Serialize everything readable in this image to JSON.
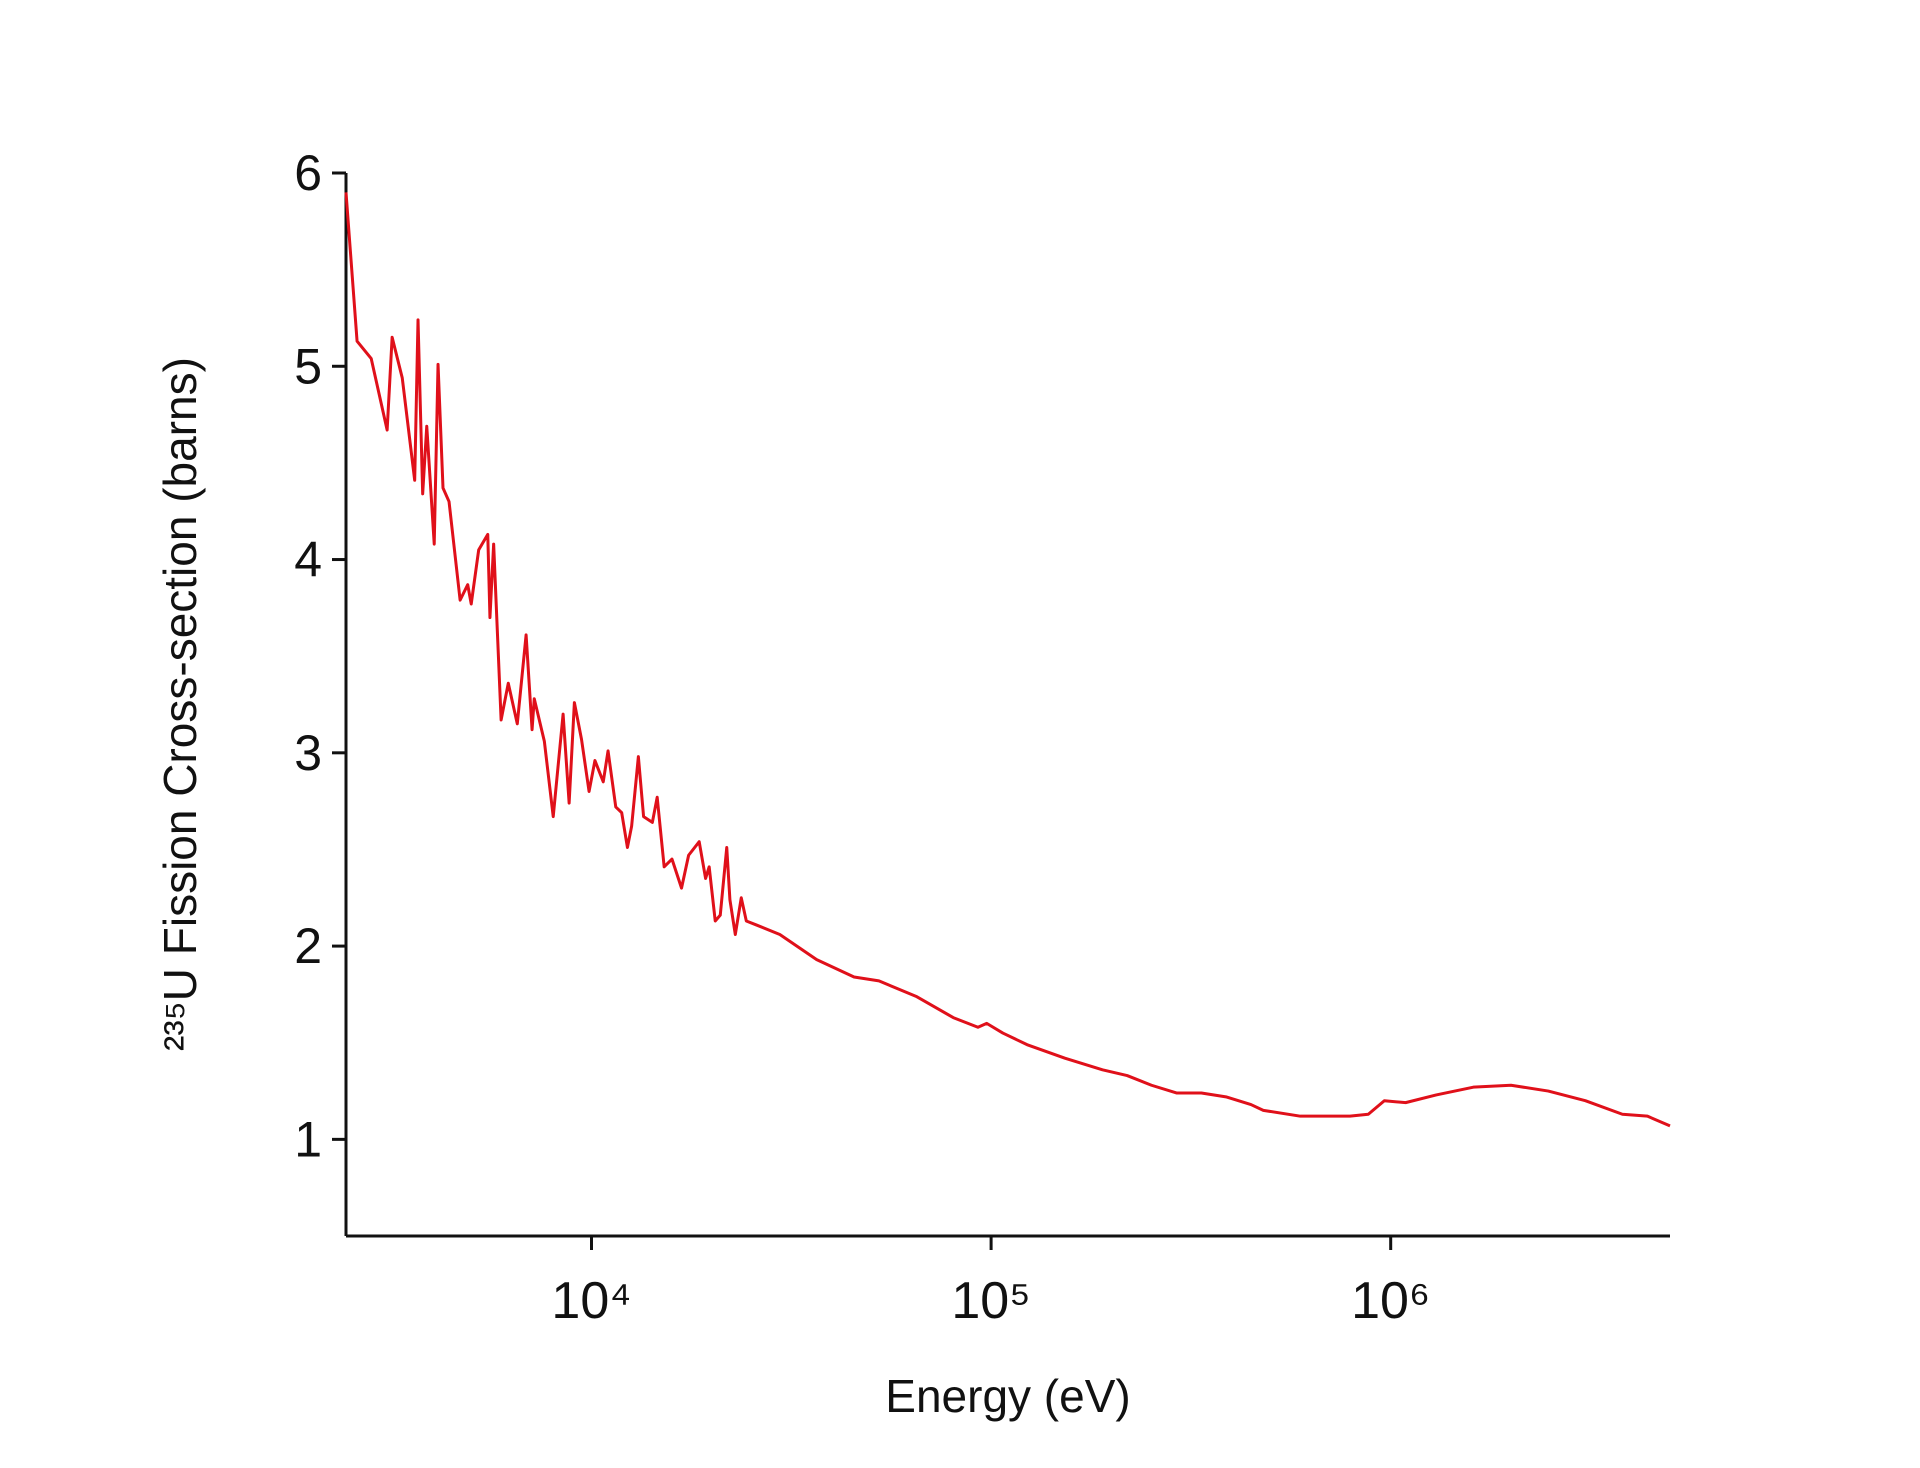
{
  "chart_data": {
    "type": "line",
    "x_label": "Energy (eV)",
    "y_label": "²³⁵U Fission Cross-section (barns)",
    "xscale": "log",
    "xlim": [
      2430,
      5000000
    ],
    "ylim": [
      0.5,
      6
    ],
    "xticks": [
      {
        "value": 10000,
        "label": "10⁴"
      },
      {
        "value": 100000,
        "label": "10⁵"
      },
      {
        "value": 1000000,
        "label": "10⁶"
      }
    ],
    "yticks": [
      1,
      2,
      3,
      4,
      5,
      6
    ],
    "grid": false,
    "series": [
      {
        "name": "²³⁵U fission",
        "color": "#e0101a",
        "x": [
          2430,
          2590,
          2810,
          3080,
          3170,
          3360,
          3610,
          3680,
          3780,
          3870,
          4040,
          4130,
          4250,
          4400,
          4690,
          4900,
          5000,
          5220,
          5500,
          5570,
          5690,
          5940,
          6190,
          6520,
          6860,
          7100,
          7190,
          7620,
          8020,
          8490,
          8790,
          9060,
          9440,
          9860,
          10200,
          10700,
          11000,
          11500,
          11900,
          12300,
          12600,
          13100,
          13500,
          14200,
          14600,
          15200,
          15900,
          16800,
          17500,
          18600,
          19300,
          19700,
          20400,
          21000,
          21800,
          22200,
          22900,
          23700,
          24400,
          25800,
          29600,
          36600,
          45400,
          52400,
          64900,
          80400,
          92700,
          97500,
          107000,
          123000,
          153000,
          190000,
          219000,
          252000,
          291000,
          336000,
          387000,
          447000,
          480000,
          594000,
          685000,
          791000,
          879000,
          964000,
          1090000,
          1300000,
          1610000,
          2000000,
          2480000,
          3070000,
          3800000,
          4390000,
          5000000
        ],
        "values": [
          5.9,
          5.13,
          5.04,
          4.67,
          5.15,
          4.94,
          4.41,
          5.24,
          4.34,
          4.69,
          4.08,
          5.01,
          4.37,
          4.3,
          3.79,
          3.87,
          3.77,
          4.05,
          4.13,
          3.7,
          4.08,
          3.17,
          3.36,
          3.15,
          3.61,
          3.12,
          3.28,
          3.06,
          2.67,
          3.2,
          2.74,
          3.26,
          3.07,
          2.8,
          2.96,
          2.85,
          3.01,
          2.72,
          2.69,
          2.51,
          2.62,
          2.98,
          2.67,
          2.64,
          2.77,
          2.41,
          2.45,
          2.3,
          2.47,
          2.54,
          2.35,
          2.41,
          2.13,
          2.16,
          2.51,
          2.24,
          2.06,
          2.25,
          2.13,
          2.11,
          2.06,
          1.93,
          1.84,
          1.82,
          1.74,
          1.63,
          1.58,
          1.6,
          1.55,
          1.49,
          1.42,
          1.36,
          1.33,
          1.28,
          1.24,
          1.24,
          1.22,
          1.18,
          1.15,
          1.12,
          1.12,
          1.12,
          1.13,
          1.2,
          1.19,
          1.23,
          1.27,
          1.28,
          1.25,
          1.2,
          1.13,
          1.12,
          1.07
        ]
      }
    ]
  }
}
